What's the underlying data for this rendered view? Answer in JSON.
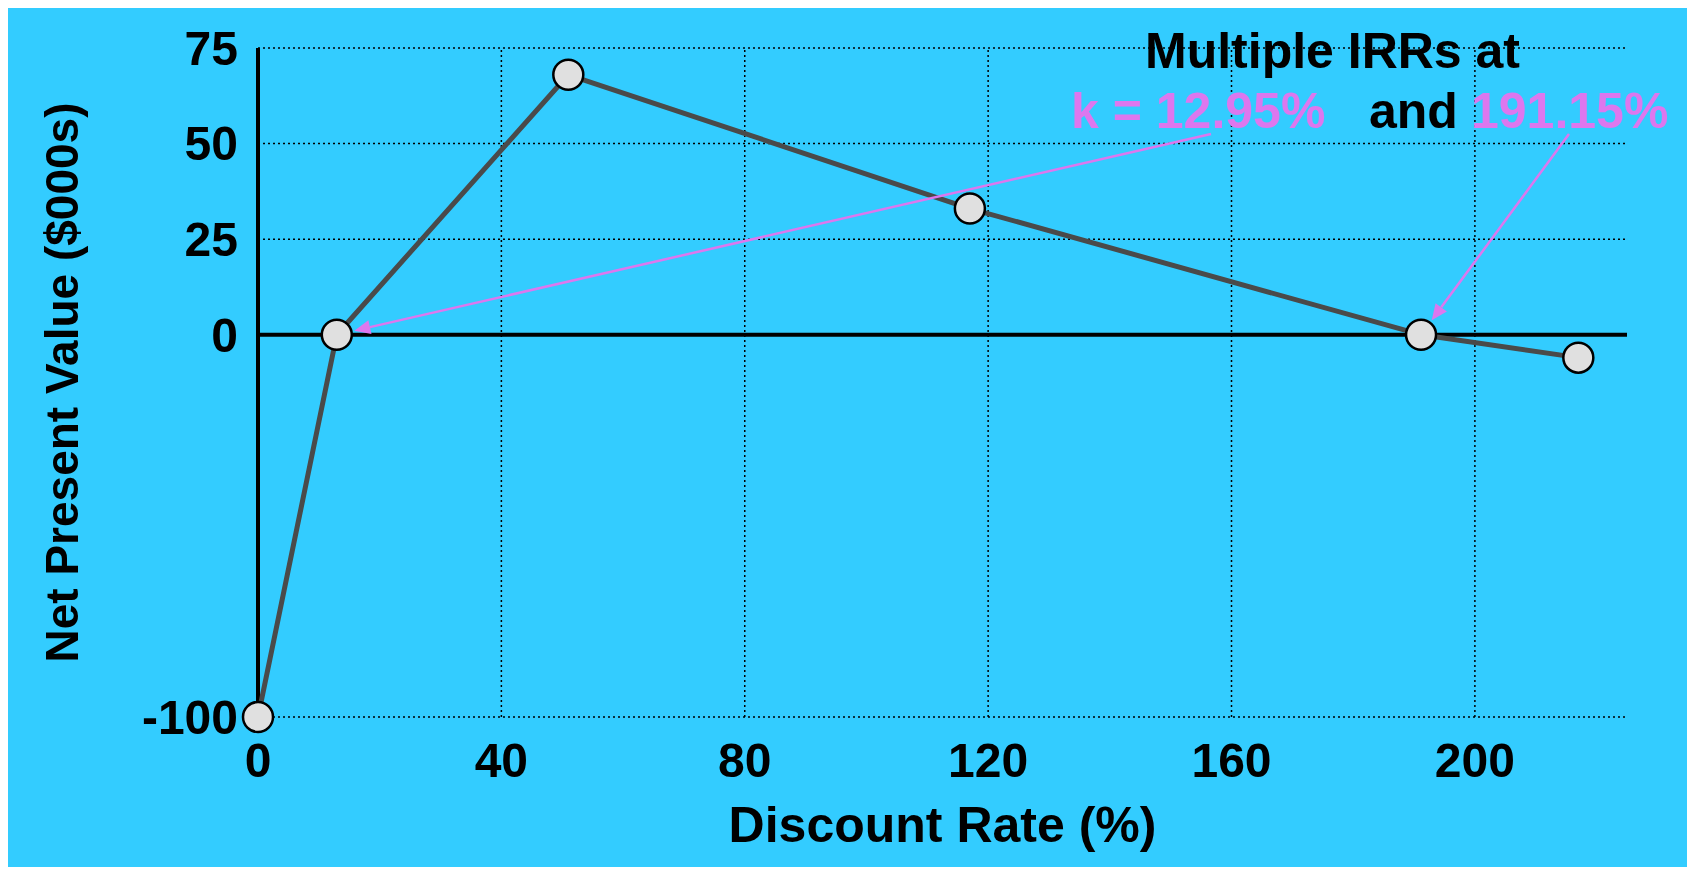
{
  "chart_data": {
    "type": "line",
    "xlabel": "Discount Rate (%)",
    "ylabel": "Net Present Value ($000s)",
    "series": [
      {
        "color": "#4a4a4a",
        "x": [
          0,
          12.95,
          51,
          117,
          191.15,
          217
        ],
        "values": [
          -100,
          0,
          68,
          33,
          0,
          -6
        ]
      }
    ],
    "xlim": [
      0,
      225
    ],
    "xticks": [
      0,
      40,
      80,
      120,
      160,
      200
    ],
    "ylim": [
      -100,
      75
    ],
    "yticks": [
      -100,
      0,
      25,
      50,
      75
    ],
    "grid": true,
    "marker": "circle",
    "annotations": [
      "Multiple IRRs at",
      "k = 12.95%",
      "and",
      "191.15%"
    ]
  }
}
